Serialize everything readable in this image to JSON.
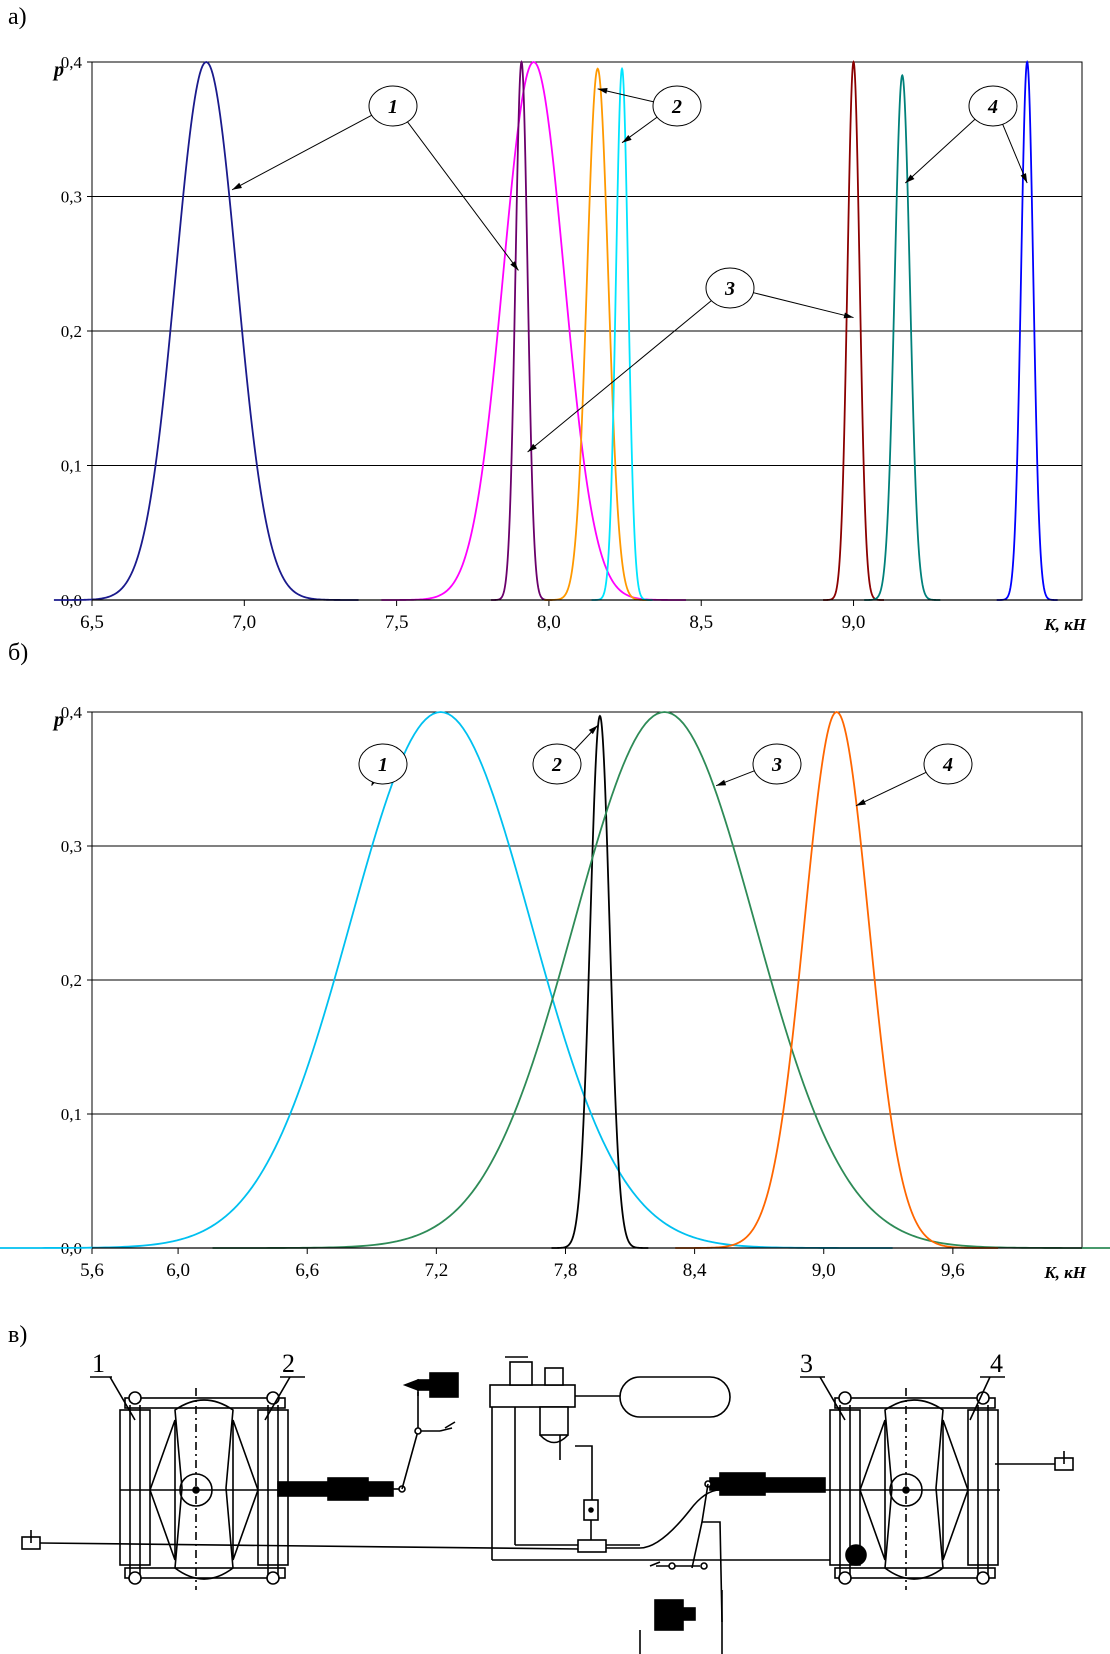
{
  "panels": {
    "a_label": "а)",
    "b_label": "б)",
    "v_label": "в)"
  },
  "chart_data": [
    {
      "type": "line",
      "panel": "а)",
      "ylabel": "p",
      "xlabel": "K, кН",
      "xlim": [
        6.5,
        9.75
      ],
      "ylim": [
        0,
        0.4
      ],
      "x_ticks": [
        6.5,
        7.0,
        7.5,
        8.0,
        8.5,
        9.0
      ],
      "x_tick_labels": [
        "6,5",
        "7,0",
        "7,5",
        "8,0",
        "8,5",
        "9,0"
      ],
      "y_ticks": [
        0.0,
        0.1,
        0.2,
        0.3,
        0.4
      ],
      "y_tick_labels": [
        "0,0",
        "0,1",
        "0,2",
        "0,3",
        "0,4"
      ],
      "grid": "horizontal",
      "callouts": [
        "1",
        "2",
        "3",
        "4"
      ],
      "series": [
        {
          "group": "1",
          "color": "#1a1a8c",
          "mean": 6.875,
          "sigma": 0.1,
          "peak": 0.4
        },
        {
          "group": "1",
          "color": "#ff00ff",
          "mean": 7.95,
          "sigma": 0.1,
          "peak": 0.4
        },
        {
          "group": "3",
          "color": "#6b006b",
          "mean": 7.91,
          "sigma": 0.02,
          "peak": 0.4
        },
        {
          "group": "2",
          "color": "#ff9900",
          "mean": 8.16,
          "sigma": 0.035,
          "peak": 0.395
        },
        {
          "group": "2",
          "color": "#00e5ff",
          "mean": 8.24,
          "sigma": 0.02,
          "peak": 0.395
        },
        {
          "group": "3",
          "color": "#8b0000",
          "mean": 9.0,
          "sigma": 0.02,
          "peak": 0.4
        },
        {
          "group": "4",
          "color": "#00807a",
          "mean": 9.16,
          "sigma": 0.025,
          "peak": 0.39
        },
        {
          "group": "4",
          "color": "#0000ff",
          "mean": 9.57,
          "sigma": 0.02,
          "peak": 0.4
        }
      ]
    },
    {
      "type": "line",
      "panel": "б)",
      "ylabel": "p",
      "xlabel": "K, кН",
      "xlim": [
        5.6,
        10.2
      ],
      "ylim": [
        0,
        0.4
      ],
      "x_ticks": [
        5.6,
        6.0,
        6.6,
        7.2,
        7.8,
        8.4,
        9.0,
        9.6
      ],
      "x_tick_labels": [
        "5,6",
        "6,0",
        "6,6",
        "7,2",
        "7,8",
        "8,4",
        "9,0",
        "9,6"
      ],
      "y_ticks": [
        0.0,
        0.1,
        0.2,
        0.3,
        0.4
      ],
      "y_tick_labels": [
        "0,0",
        "0,1",
        "0,2",
        "0,3",
        "0,4"
      ],
      "grid": "horizontal",
      "callouts": [
        "1",
        "2",
        "3",
        "4"
      ],
      "series": [
        {
          "group": "1",
          "color": "#00c0f0",
          "mean": 7.22,
          "sigma": 0.42,
          "peak": 0.4
        },
        {
          "group": "2",
          "color": "#000000",
          "mean": 7.96,
          "sigma": 0.045,
          "peak": 0.397
        },
        {
          "group": "3",
          "color": "#2e8b57",
          "mean": 8.26,
          "sigma": 0.42,
          "peak": 0.4
        },
        {
          "group": "4",
          "color": "#ff6600",
          "mean": 9.06,
          "sigma": 0.15,
          "peak": 0.4
        }
      ]
    }
  ],
  "diagram": {
    "numbers": [
      "1",
      "2",
      "3",
      "4"
    ]
  }
}
